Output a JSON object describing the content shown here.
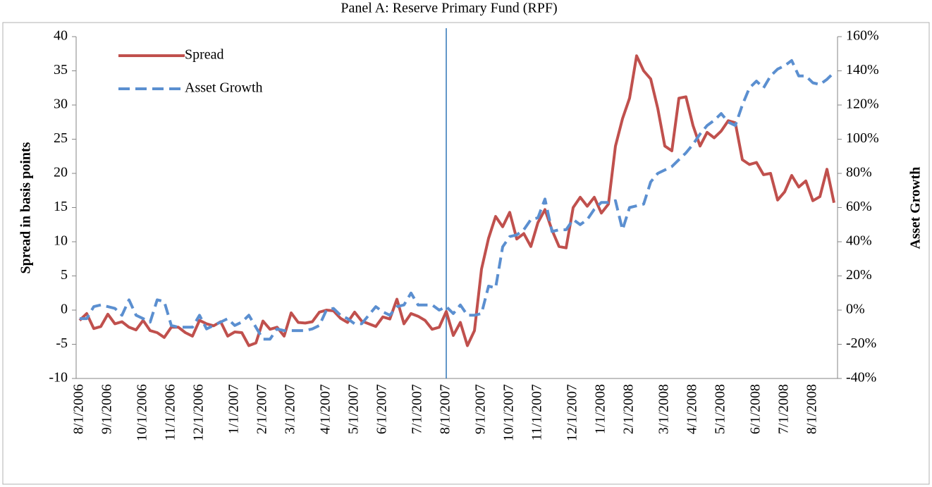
{
  "chart_data": {
    "type": "line",
    "title": "Panel A: Reserve Primary Fund (RPF)",
    "y_label": "Spread in basis points",
    "y2_label": "Asset Growth",
    "categories": [
      "8/1/2006",
      null,
      null,
      null,
      "9/1/2006",
      null,
      null,
      null,
      null,
      "10/1/2006",
      null,
      null,
      null,
      "11/1/2006",
      null,
      null,
      null,
      "12/1/2006",
      null,
      null,
      null,
      null,
      "1/1/2007",
      null,
      null,
      null,
      "2/1/2007",
      null,
      null,
      null,
      "3/1/2007",
      null,
      null,
      null,
      null,
      "4/1/2007",
      null,
      null,
      null,
      "5/1/2007",
      null,
      null,
      null,
      "6/1/2007",
      null,
      null,
      null,
      null,
      "7/1/2007",
      null,
      null,
      null,
      "8/1/2007",
      null,
      null,
      null,
      null,
      "9/1/2007",
      null,
      null,
      null,
      "10/1/2007",
      null,
      null,
      null,
      "11/1/2007",
      null,
      null,
      null,
      null,
      "12/1/2007",
      null,
      null,
      null,
      "1/1/2008",
      null,
      null,
      null,
      "2/1/2008",
      null,
      null,
      null,
      null,
      "3/1/2008",
      null,
      null,
      null,
      "4/1/2008",
      null,
      null,
      null,
      "5/1/2008",
      null,
      null,
      null,
      null,
      "6/1/2008",
      null,
      null,
      null,
      "7/1/2008",
      null,
      null,
      null,
      "8/1/2008",
      null,
      null,
      null
    ],
    "series": [
      {
        "name": "Spread",
        "color": "#c0504d",
        "style": "solid",
        "axis": "y",
        "values": [
          -1.5,
          -0.5,
          -2.7,
          -2.4,
          -0.6,
          -2,
          -1.7,
          -2.5,
          -2.9,
          -1.5,
          -3,
          -3.3,
          -4,
          -2.5,
          -2.5,
          -3.3,
          -3.8,
          -1.5,
          -2,
          -2.3,
          -1.7,
          -3.8,
          -3.2,
          -3.3,
          -5.2,
          -4.8,
          -1.6,
          -2.8,
          -2.5,
          -3.8,
          -0.4,
          -1.8,
          -1.9,
          -1.7,
          -0.3,
          0,
          -0.1,
          -1.2,
          -1.8,
          -0.3,
          -1.6,
          -2,
          -2.4,
          -1,
          -1.3,
          1.6,
          -2,
          -0.5,
          -0.9,
          -1.5,
          -2.8,
          -2.5,
          -0.2,
          -3.7,
          -1.8,
          -5.2,
          -3,
          6,
          10.5,
          13.7,
          12.2,
          14.3,
          10.4,
          11.2,
          9.3,
          12.8,
          14.7,
          11.7,
          9.3,
          9.1,
          15,
          16.5,
          15.2,
          16.5,
          14.2,
          15.5,
          24,
          28,
          31,
          37.2,
          35,
          33.8,
          29.5,
          24,
          23.3,
          31,
          31.2,
          27,
          24,
          26,
          25.2,
          26.2,
          27.7,
          27.4,
          22,
          21.3,
          21.6,
          19.8,
          20,
          16.1,
          17.3,
          19.7,
          18,
          18.9,
          16,
          16.6,
          20.6,
          15.7
        ]
      },
      {
        "name": "Asset Growth",
        "color": "#5b8fd0",
        "style": "dashed",
        "axis": "y2",
        "values": [
          -5,
          -5,
          2,
          3,
          2,
          1,
          -3,
          6,
          -3,
          -5,
          -7,
          6,
          5,
          -9,
          -10,
          -10,
          -10,
          -3,
          -11,
          -9,
          -7,
          -5,
          -9,
          -7,
          -3,
          -10,
          -17,
          -17,
          -11,
          -12,
          -12,
          -12,
          -12,
          -11,
          -9,
          0,
          1,
          -3,
          -5,
          -8,
          -8,
          -3,
          2,
          -1,
          -3,
          2,
          3,
          10,
          3,
          3,
          3,
          0,
          2,
          -2,
          3,
          -3,
          -3,
          -2,
          14,
          13,
          37,
          43,
          44,
          47,
          53,
          54,
          65,
          46,
          47,
          47,
          53,
          50,
          53,
          59,
          63,
          63,
          64,
          47,
          60,
          61,
          62,
          75,
          80,
          82,
          84,
          88,
          92,
          97,
          103,
          108,
          111,
          115,
          110,
          108,
          120,
          130,
          134,
          130,
          137,
          141,
          143,
          146,
          137,
          137,
          133,
          132,
          135,
          139
        ]
      }
    ],
    "ylim": [
      -10,
      40
    ],
    "yticks": [
      -10,
      -5,
      0,
      5,
      10,
      15,
      20,
      25,
      30,
      35,
      40
    ],
    "y2lim": [
      -40,
      160
    ],
    "y2ticks": [
      {
        "value": -40,
        "label": "-40%"
      },
      {
        "value": -20,
        "label": "-20%"
      },
      {
        "value": 0,
        "label": "0%"
      },
      {
        "value": 20,
        "label": "20%"
      },
      {
        "value": 40,
        "label": "40%"
      },
      {
        "value": 60,
        "label": "60%"
      },
      {
        "value": 80,
        "label": "80%"
      },
      {
        "value": 100,
        "label": "100%"
      },
      {
        "value": 120,
        "label": "120%"
      },
      {
        "value": 140,
        "label": "140%"
      },
      {
        "value": 160,
        "label": "160%"
      }
    ],
    "vertical_line": {
      "x": "8/1/2007",
      "color": "#2e75b6"
    },
    "legend": "top-left",
    "grid": false
  }
}
